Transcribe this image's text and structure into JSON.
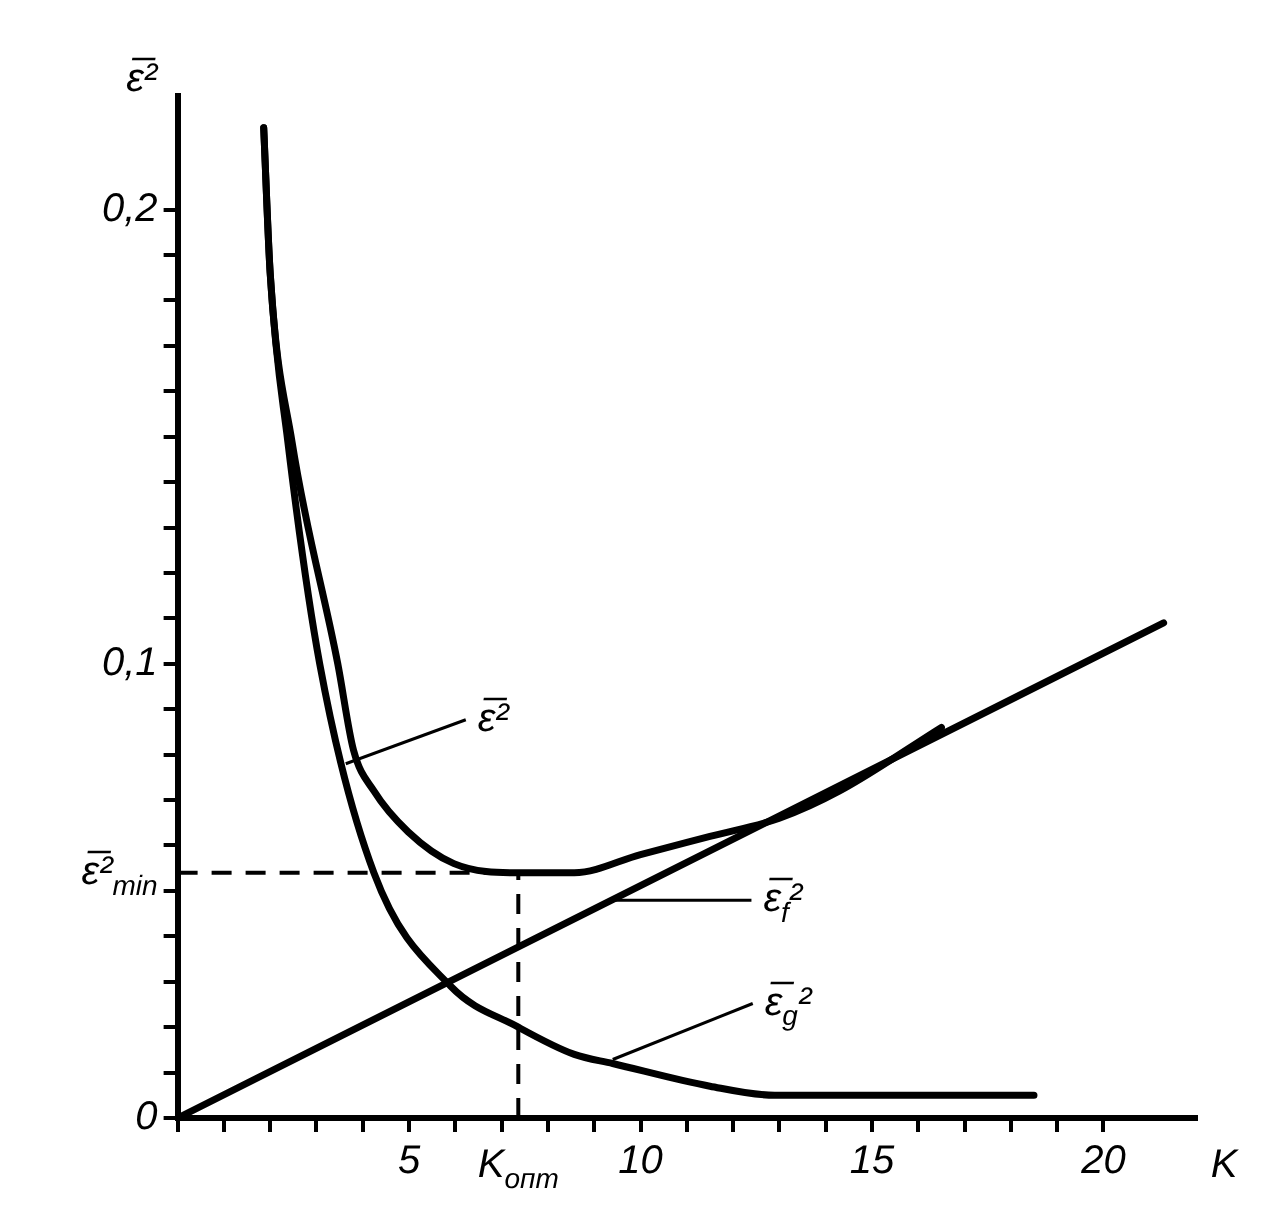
{
  "chart_data": {
    "type": "line",
    "xlabel": "K",
    "ylabel": "ε̅²",
    "xlim": [
      0,
      22
    ],
    "ylim": [
      0,
      0.225
    ],
    "xticks": [
      {
        "value": 0,
        "label": null
      },
      {
        "value": 1,
        "label": null
      },
      {
        "value": 2,
        "label": null
      },
      {
        "value": 3,
        "label": null
      },
      {
        "value": 4,
        "label": null
      },
      5,
      {
        "value": 6,
        "label": null
      },
      {
        "value": 7,
        "label": null
      },
      {
        "value": 8,
        "label": null
      },
      {
        "value": 9,
        "label": null
      },
      10,
      {
        "value": 11,
        "label": null
      },
      {
        "value": 12,
        "label": null
      },
      {
        "value": 13,
        "label": null
      },
      {
        "value": 14,
        "label": null
      },
      15,
      {
        "value": 16,
        "label": null
      },
      {
        "value": 17,
        "label": null
      },
      {
        "value": 18,
        "label": null
      },
      {
        "value": 19,
        "label": null
      },
      20
    ],
    "yticks": [
      0,
      {
        "value": 0.01,
        "label": null
      },
      {
        "value": 0.02,
        "label": null
      },
      {
        "value": 0.03,
        "label": null
      },
      {
        "value": 0.04,
        "label": null
      },
      {
        "value": 0.05,
        "label": null
      },
      {
        "value": 0.06,
        "label": null
      },
      {
        "value": 0.07,
        "label": null
      },
      {
        "value": 0.08,
        "label": null
      },
      {
        "value": 0.09,
        "label": null
      },
      {
        "value": 0.1,
        "label": "0,1"
      },
      {
        "value": 0.11,
        "label": null
      },
      {
        "value": 0.12,
        "label": null
      },
      {
        "value": 0.13,
        "label": null
      },
      {
        "value": 0.14,
        "label": null
      },
      {
        "value": 0.15,
        "label": null
      },
      {
        "value": 0.16,
        "label": null
      },
      {
        "value": 0.17,
        "label": null
      },
      {
        "value": 0.18,
        "label": null
      },
      {
        "value": 0.19,
        "label": null
      },
      {
        "value": 0.2,
        "label": "0,2"
      }
    ],
    "grid": false,
    "legend": "bottom left",
    "marker": "none",
    "series": [
      {
        "name": "ε̅²",
        "color": "#000000",
        "x": [
          1.86,
          2.0,
          2.47,
          3.46,
          3.8,
          4.24,
          4.98,
          5.97,
          7.36,
          8.57,
          10,
          11.5,
          13,
          14.3,
          16.5
        ],
        "values": [
          0.218,
          0.186,
          0.149,
          0.1,
          0.081,
          0.072,
          0.063,
          0.056,
          0.054,
          0.054,
          0.058,
          0.062,
          0.066,
          0.072,
          0.086
        ]
      },
      {
        "name": "ε̅$_{f}$²",
        "color": "#000000",
        "x": [
          0,
          21.3
        ],
        "values": [
          0,
          0.109
        ]
      },
      {
        "name": "ε̅$_{g}$²",
        "color": "#000000",
        "x": [
          1.86,
          2.0,
          2.38,
          3.07,
          4.24,
          5.9,
          7.36,
          8.57,
          9.4,
          11.5,
          12.9,
          15.1,
          18.5
        ],
        "values": [
          0.218,
          0.186,
          0.149,
          0.1,
          0.054,
          0.029,
          0.02,
          0.014,
          0.012,
          0.007,
          0.005,
          0.005,
          0.005
        ]
      }
    ],
    "ref_lines": [
      {
        "axis": "x",
        "value": 7.36,
        "label": "K$_{опт}$",
        "line_style": "dashed",
        "color": "#000000"
      },
      {
        "axis": "y",
        "value": 0.054,
        "label": "ε̅²$_{min}$",
        "line_style": "dashed",
        "color": "#000000"
      }
    ]
  }
}
